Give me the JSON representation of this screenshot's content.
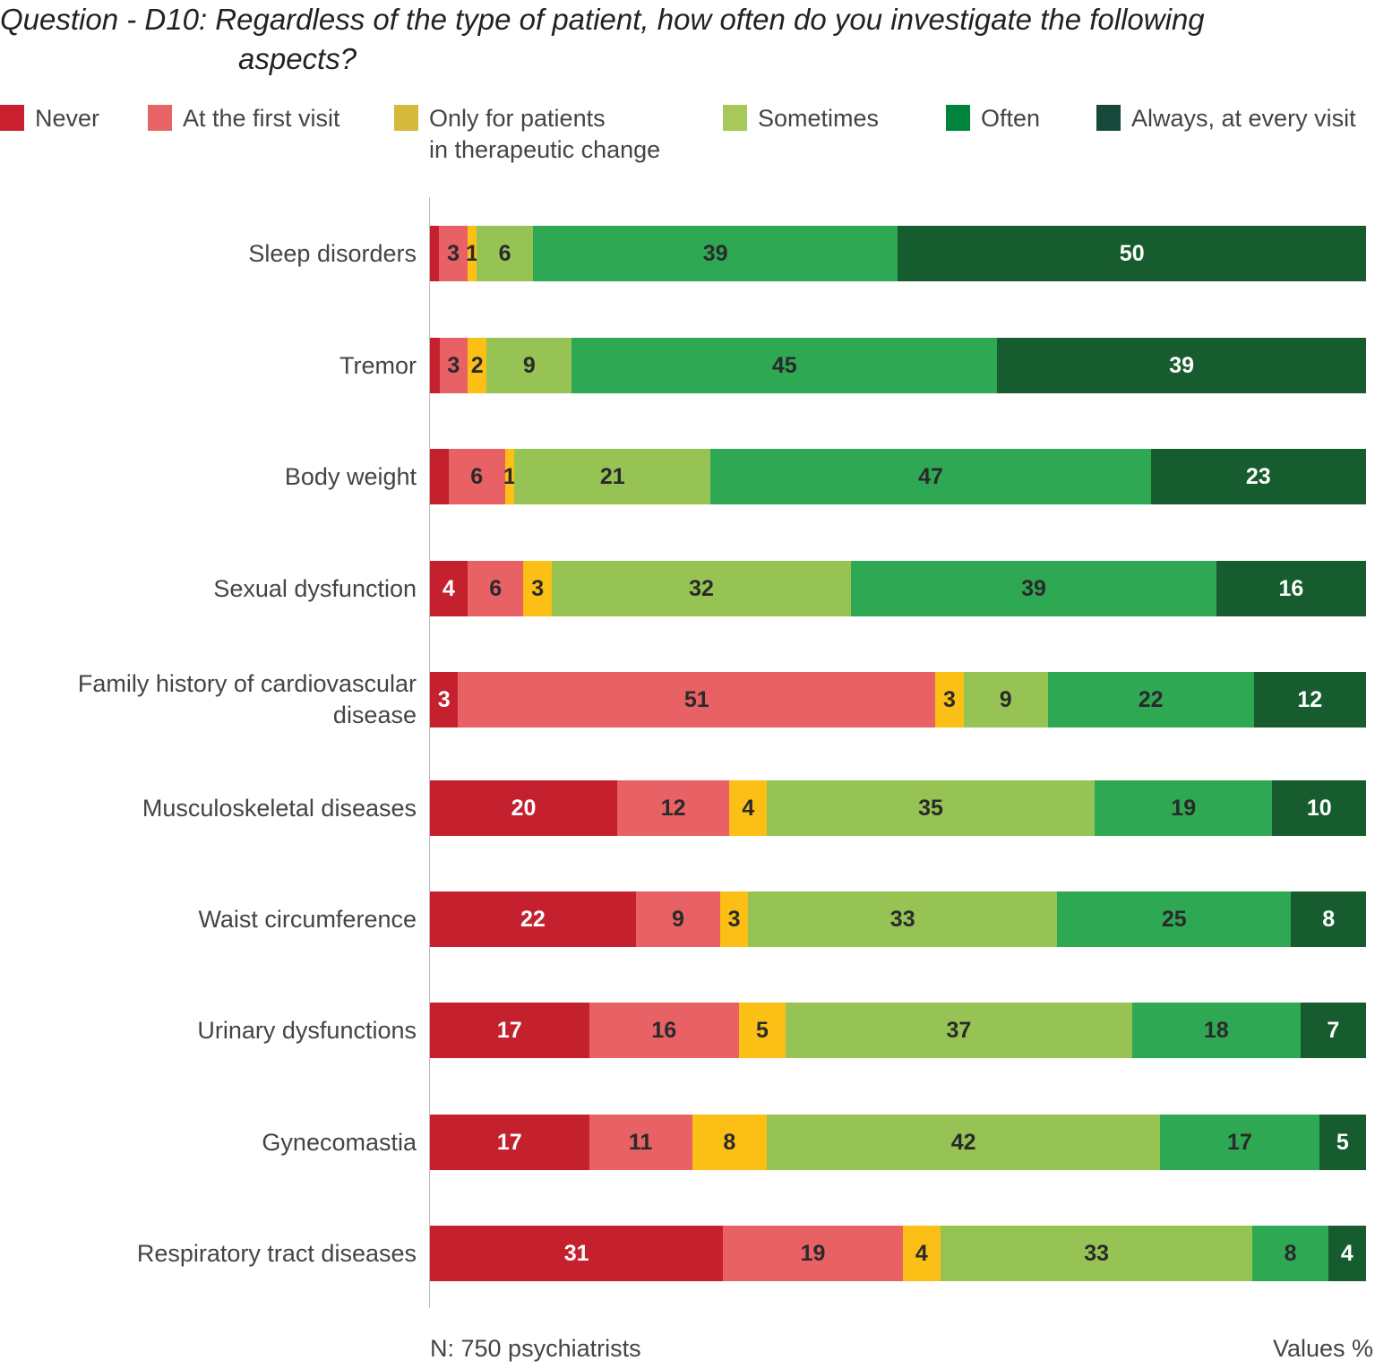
{
  "chart_data": {
    "type": "bar",
    "orientation": "horizontal",
    "stacked": true,
    "title_line1": "Question - D10: Regardless of the type of patient, how often do you investigate the following",
    "title_line2": "aspects?",
    "legend": [
      {
        "name": "Never",
        "color": "#c8202f"
      },
      {
        "name": "At the first visit",
        "color": "#e86464"
      },
      {
        "name": "Only for patients\nin therapeutic change",
        "color": "#d4b93c"
      },
      {
        "name": "Sometimes",
        "color": "#a6c95a"
      },
      {
        "name": "Often",
        "color": "#00843d"
      },
      {
        "name": "Always, at every visit",
        "color": "#17483a"
      }
    ],
    "categories": [
      "Sleep disorders",
      "Tremor",
      "Body weight",
      "Sexual dysfunction",
      "Family history of cardiovascular disease",
      "Musculoskeletal diseases",
      "Waist circumference",
      "Urinary dysfunctions",
      "Gynecomastia",
      "Respiratory tract diseases"
    ],
    "series": [
      {
        "name": "Never",
        "color": "#c5202e",
        "values": [
          1,
          1,
          2,
          4,
          3,
          20,
          22,
          17,
          17,
          31
        ],
        "labels": [
          "",
          "",
          "",
          "4",
          "3",
          "20",
          "22",
          "17",
          "17",
          "31"
        ]
      },
      {
        "name": "At the first visit",
        "color": "#e86165",
        "values": [
          3,
          3,
          6,
          6,
          51,
          12,
          9,
          16,
          11,
          19
        ],
        "labels": [
          "3",
          "3",
          "6",
          "6",
          "51",
          "12",
          "9",
          "16",
          "11",
          "19"
        ]
      },
      {
        "name": "Only for patients in therapeutic change",
        "color": "#fbbf15",
        "values": [
          1,
          2,
          1,
          3,
          3,
          4,
          3,
          5,
          8,
          4
        ],
        "labels": [
          "1",
          "2",
          "1",
          "3",
          "3",
          "4",
          "3",
          "5",
          "8",
          "4"
        ]
      },
      {
        "name": "Sometimes",
        "color": "#97c355",
        "values": [
          6,
          9,
          21,
          32,
          9,
          35,
          33,
          37,
          42,
          33
        ],
        "labels": [
          "6",
          "9",
          "21",
          "32",
          "9",
          "35",
          "33",
          "37",
          "42",
          "33"
        ]
      },
      {
        "name": "Often",
        "color": "#2ea852",
        "values": [
          39,
          45,
          47,
          39,
          22,
          19,
          25,
          18,
          17,
          8
        ],
        "labels": [
          "39",
          "45",
          "47",
          "39",
          "22",
          "19",
          "25",
          "18",
          "17",
          "8"
        ]
      },
      {
        "name": "Always, at every visit",
        "color": "#175c2e",
        "values": [
          50,
          39,
          23,
          16,
          12,
          10,
          8,
          7,
          5,
          4
        ],
        "labels": [
          "50",
          "39",
          "23",
          "16",
          "12",
          "10",
          "8",
          "7",
          "5",
          "4"
        ]
      }
    ],
    "xlim": [
      0,
      100
    ],
    "footer_left": "N: 750 psychiatrists",
    "footer_right": "Values %"
  }
}
